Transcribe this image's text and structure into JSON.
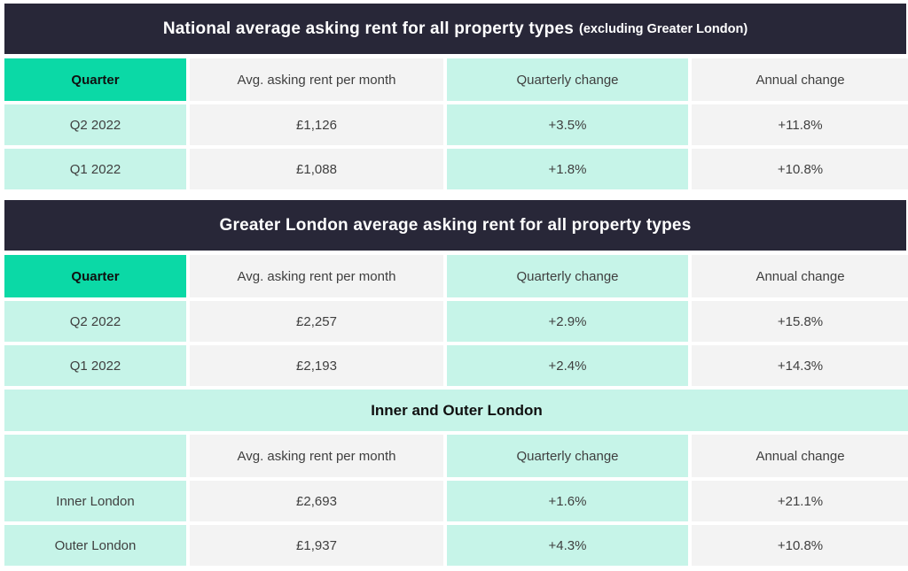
{
  "colors": {
    "dark_header_bg": "#282738",
    "accent_green": "#0bd9a6",
    "mint": "#c6f4e8",
    "gray_cell": "#f3f3f3",
    "header_text": "#ffffff",
    "cell_text": "#3f3f3f"
  },
  "chart_data": [
    {
      "type": "table",
      "title": "National average asking rent for all property types (excluding Greater London)",
      "title_main": "National average asking rent for all property types",
      "title_note": "(excluding Greater London)",
      "columns": [
        "Quarter",
        "Avg. asking rent per month",
        "Quarterly change",
        "Annual change"
      ],
      "rows": [
        [
          "Q2 2022",
          "£1,126",
          "+3.5%",
          "+11.8%"
        ],
        [
          "Q1 2022",
          "£1,088",
          "+1.8%",
          "+10.8%"
        ]
      ]
    },
    {
      "type": "table",
      "title": "Greater London average asking rent for all property types",
      "title_main": "Greater London average asking rent for all property types",
      "columns": [
        "Quarter",
        "Avg. asking rent per month",
        "Quarterly change",
        "Annual change"
      ],
      "rows": [
        [
          "Q2 2022",
          "£2,257",
          "+2.9%",
          "+15.8%"
        ],
        [
          "Q1 2022",
          "£2,193",
          "+2.4%",
          "+14.3%"
        ]
      ]
    },
    {
      "type": "table",
      "title": "Inner and Outer London",
      "columns": [
        "",
        "Avg. asking rent per month",
        "Quarterly change",
        "Annual change"
      ],
      "rows": [
        [
          "Inner London",
          "£2,693",
          "+1.6%",
          "+21.1%"
        ],
        [
          "Outer London",
          "£1,937",
          "+4.3%",
          "+10.8%"
        ]
      ]
    }
  ]
}
